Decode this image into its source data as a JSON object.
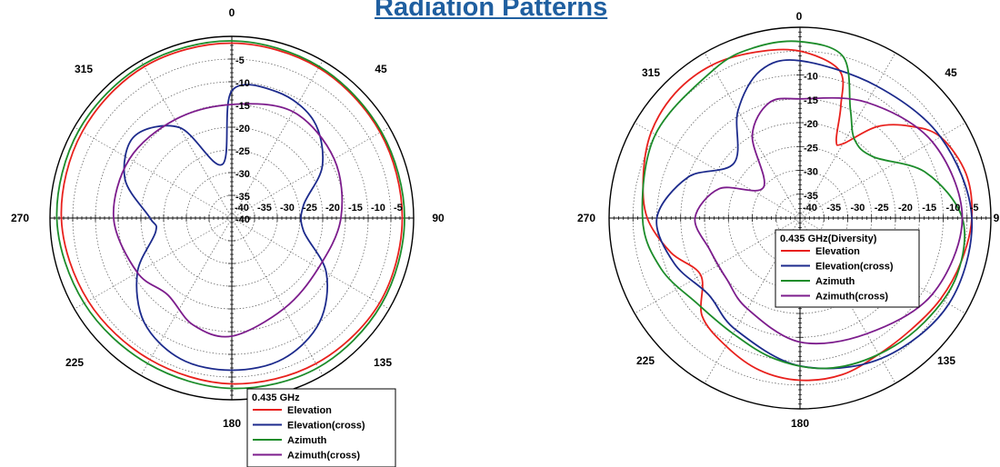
{
  "title": "Radiation Patterns",
  "colors": {
    "elevation": "#e8201c",
    "elevation_cross": "#1c2a8c",
    "azimuth": "#1c8c2a",
    "azimuth_cross": "#7c1c8c"
  },
  "chart_data": [
    {
      "type": "polar",
      "rlim": [
        -40,
        0
      ],
      "radial_ticks": [
        "-5",
        "-10",
        "-15",
        "-20",
        "-25",
        "-30",
        "-35",
        "-40"
      ],
      "horizontal_tick_labels": [
        "-40",
        "-35",
        "-30",
        "-25",
        "-20",
        "-15",
        "-10",
        "-5"
      ],
      "angle_labels": [
        "0",
        "45",
        "90",
        "135",
        "180",
        "225",
        "270",
        "315"
      ],
      "legend": {
        "title": "0.435 GHz",
        "placement": "bottom-right",
        "entries": [
          "Elevation",
          "Elevation(cross)",
          "Azimuth",
          "Azimuth(cross)"
        ]
      },
      "series": [
        {
          "name": "Elevation",
          "theta": [
            0,
            30,
            60,
            90,
            120,
            150,
            180,
            210,
            240,
            270,
            300,
            330
          ],
          "values": [
            -1.5,
            -1.8,
            -2.3,
            -2.5,
            -2.5,
            -3.0,
            -3.5,
            -4.0,
            -3.5,
            -2.5,
            -2.0,
            -1.5
          ]
        },
        {
          "name": "Elevation(cross)",
          "theta": [
            0,
            20,
            40,
            60,
            80,
            100,
            120,
            140,
            160,
            180,
            200,
            220,
            240,
            260,
            270,
            290,
            310,
            330,
            350
          ],
          "values": [
            -12,
            -10.5,
            -12,
            -17,
            -24,
            -24,
            -16,
            -10,
            -7,
            -6.5,
            -7,
            -10,
            -16,
            -23,
            -22,
            -15,
            -12,
            -17,
            -28
          ]
        },
        {
          "name": "Azimuth",
          "theta": [
            0,
            30,
            60,
            90,
            120,
            150,
            180,
            210,
            240,
            270,
            300,
            330
          ],
          "values": [
            -1,
            -1.5,
            -2.0,
            -2.0,
            -2.0,
            -2.0,
            -2.5,
            -3.0,
            -2.5,
            -1.5,
            -1.2,
            -1.0
          ]
        },
        {
          "name": "Azimuth(cross)",
          "theta": [
            0,
            30,
            60,
            90,
            120,
            150,
            180,
            200,
            220,
            240,
            270,
            300,
            330
          ],
          "values": [
            -15,
            -13,
            -14,
            -16,
            -18,
            -17,
            -14,
            -15,
            -18,
            -16,
            -14,
            -14,
            -15
          ]
        }
      ]
    },
    {
      "type": "polar",
      "rlim": [
        -40,
        0
      ],
      "radial_ticks": [
        "-10",
        "-15",
        "-20",
        "-25",
        "-30",
        "-35"
      ],
      "horizontal_tick_labels": [
        "-40",
        "-35",
        "-30",
        "-25",
        "-20",
        "-15",
        "-10",
        "-5"
      ],
      "angle_labels": [
        "0",
        "45",
        "9",
        "135",
        "180",
        "225",
        "270",
        "315"
      ],
      "legend": {
        "title": "0.435 GHz(Diversity)",
        "placement": "center",
        "entries": [
          "Elevation",
          "Elevation(cross)",
          "Azimuth",
          "Azimuth(cross)"
        ]
      },
      "series": [
        {
          "name": "Elevation",
          "theta": [
            0,
            15,
            20,
            25,
            30,
            40,
            50,
            60,
            75,
            90,
            105,
            120,
            135,
            150,
            165,
            180,
            195,
            210,
            225,
            240,
            255,
            270,
            285,
            300,
            315,
            330,
            345
          ],
          "values": [
            -5,
            -8,
            -15,
            -22,
            -22,
            -15,
            -10,
            -6,
            -4,
            -4,
            -5,
            -6,
            -7,
            -7,
            -6,
            -6,
            -7,
            -9,
            -11,
            -16,
            -12,
            -8,
            -6,
            -4,
            -3,
            -3,
            -4
          ]
        },
        {
          "name": "Elevation(cross)",
          "theta": [
            0,
            30,
            60,
            90,
            120,
            150,
            180,
            210,
            230,
            250,
            270,
            290,
            310,
            330,
            345
          ],
          "values": [
            -7,
            -8,
            -6,
            -4,
            -4,
            -6,
            -9,
            -13,
            -15,
            -12,
            -10,
            -15,
            -22,
            -14,
            -8
          ]
        },
        {
          "name": "Azimuth",
          "theta": [
            0,
            15,
            25,
            35,
            50,
            70,
            90,
            110,
            130,
            150,
            170,
            190,
            210,
            230,
            250,
            270,
            300,
            330,
            345
          ],
          "values": [
            -3,
            -5,
            -15,
            -20,
            -20,
            -12,
            -6,
            -5,
            -6,
            -7,
            -8,
            -10,
            -12,
            -12,
            -9,
            -7,
            -5,
            -4,
            -3
          ]
        },
        {
          "name": "Azimuth(cross)",
          "theta": [
            0,
            30,
            60,
            90,
            120,
            150,
            180,
            210,
            230,
            250,
            270,
            290,
            310,
            330,
            345
          ],
          "values": [
            -15,
            -12,
            -8,
            -6,
            -8,
            -12,
            -14,
            -18,
            -20,
            -20,
            -18,
            -22,
            -30,
            -20,
            -15
          ]
        }
      ]
    }
  ]
}
